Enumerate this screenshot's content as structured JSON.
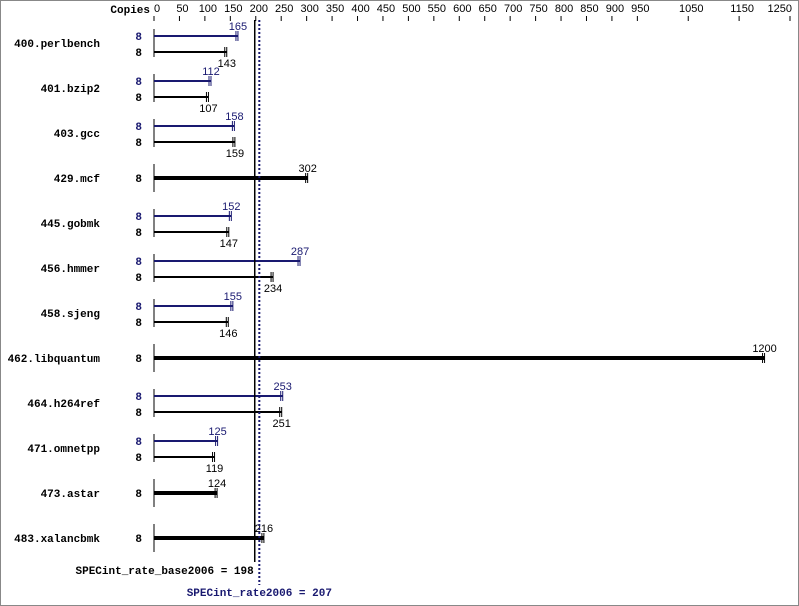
{
  "chart_data": {
    "type": "hbar",
    "copies_header": "Copies",
    "categories": [
      "400.perlbench",
      "401.bzip2",
      "403.gcc",
      "429.mcf",
      "445.gobmk",
      "456.hmmer",
      "458.sjeng",
      "462.libquantum",
      "464.h264ref",
      "471.omnetpp",
      "473.astar",
      "483.xalancbmk"
    ],
    "series": [
      {
        "name": "peak",
        "color": "#191970",
        "copies": [
          8,
          8,
          8,
          null,
          8,
          8,
          8,
          null,
          8,
          8,
          null,
          null
        ],
        "values": [
          165,
          112,
          158,
          null,
          152,
          287,
          155,
          null,
          253,
          125,
          null,
          null
        ]
      },
      {
        "name": "base",
        "color": "#000000",
        "copies": [
          8,
          8,
          8,
          8,
          8,
          8,
          8,
          8,
          8,
          8,
          8,
          8
        ],
        "values": [
          143,
          107,
          159,
          302,
          147,
          234,
          146,
          1200,
          251,
          119,
          124,
          216
        ]
      }
    ],
    "xlim": [
      0,
      1250
    ],
    "xticks": [
      0,
      50,
      100,
      150,
      200,
      250,
      300,
      350,
      400,
      450,
      500,
      550,
      600,
      650,
      700,
      750,
      800,
      850,
      900,
      950,
      1050,
      1150,
      1250
    ],
    "reference_lines": [
      {
        "label": "SPECint_rate_base2006 = 198",
        "value": 198,
        "color": "#000000",
        "style": "solid"
      },
      {
        "label": "SPECint_rate2006 = 207",
        "value": 207,
        "color": "#191970",
        "style": "dotted"
      }
    ]
  }
}
